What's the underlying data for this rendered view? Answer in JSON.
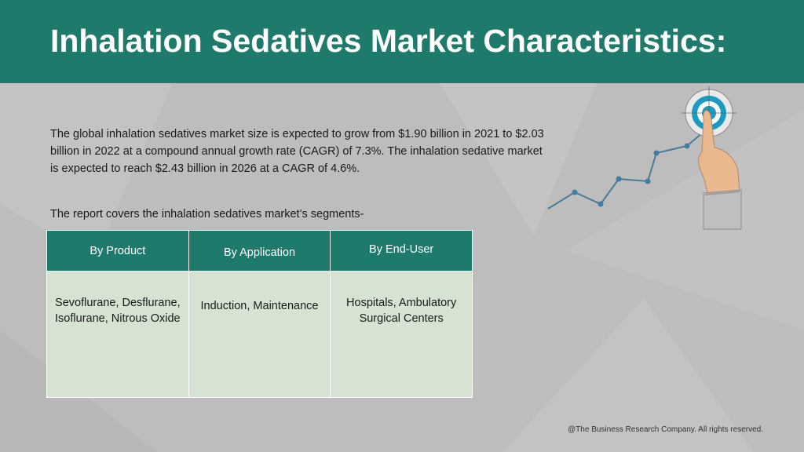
{
  "header": {
    "title": "Inhalation Sedatives Market Characteristics:"
  },
  "intro": {
    "paragraph": "The global inhalation sedatives market size is expected to grow from $1.90 billion in 2021 to $2.03 billion in 2022 at a compound annual growth rate (CAGR) of 7.3%. The inhalation sedative market is expected to reach $2.43 billion in 2026 at a CAGR of 4.6%.",
    "segments_intro": "The report covers the inhalation sedatives market’s segments-"
  },
  "segments_table": {
    "headers": [
      "By Product",
      "By Application",
      "By End-User"
    ],
    "cells": [
      "Sevoflurane, Desflurane, Isoflurane, Nitrous Oxide",
      "Induction, Maintenance",
      "Hospitals, Ambulatory Surgical Centers"
    ]
  },
  "illustration": {
    "icon": "growth-chart-hand-target-icon"
  },
  "colors": {
    "header_bg": "#1e7b6b",
    "page_bg": "#bdbdbd",
    "table_body_bg": "#d6e2d2",
    "line_color": "#4a7b97"
  },
  "footer": {
    "copyright": "@The Business Research Company. All rights reserved."
  }
}
